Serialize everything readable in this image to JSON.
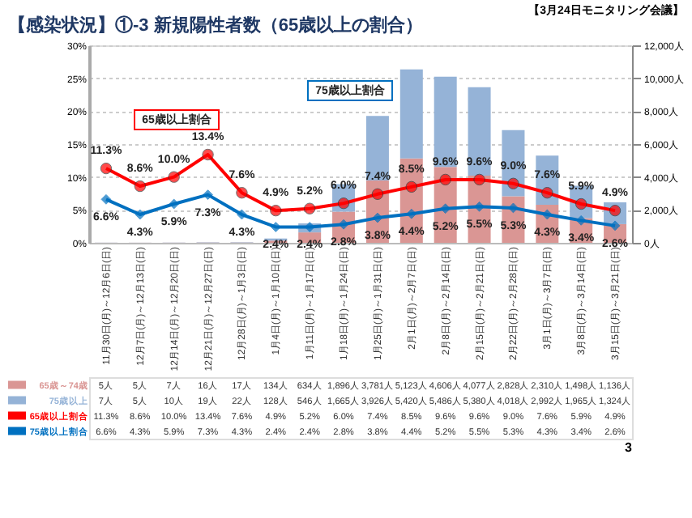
{
  "chart_data": {
    "type": "bar",
    "title": "【感染状況】①-3 新規陽性者数（65歳以上の割合）",
    "annotations": [
      "【3月24日モニタリング会議】",
      "3",
      "65歳以上割合",
      "75歳以上割合"
    ],
    "categories": [
      "11月30日(月)～12月6日(日)",
      "12月7日(月)～12月13日(日)",
      "12月14日(月)～12月20日(日)",
      "12月21日(月)～12月27日(日)",
      "12月28日(月)～1月3日(日)",
      "1月4日(月)～1月10日(日)",
      "1月11日(月)～1月17日(日)",
      "1月18日(月)～1月24日(日)",
      "1月25日(月)～1月31日(日)",
      "2月1日(月)～2月7日(日)",
      "2月8日(月)～2月14日(日)",
      "2月15日(月)～2月21日(日)",
      "2月22日(月)～2月28日(日)",
      "3月1日(月)～3月7日(日)",
      "3月8日(月)～3月14日(日)",
      "3月15日(月)～3月21日(日)"
    ],
    "stacked": true,
    "series": [
      {
        "name": "65歳～74歳",
        "axis": "y2",
        "color": "#da9694",
        "values": [
          5,
          5,
          7,
          16,
          17,
          134,
          634,
          1896,
          3781,
          5123,
          4606,
          4077,
          2828,
          2310,
          1498,
          1136
        ],
        "value_labels": [
          "5人",
          "5人",
          "7人",
          "16人",
          "17人",
          "134人",
          "634人",
          "1,896人",
          "3,781人",
          "5,123人",
          "4,606人",
          "4,077人",
          "2,828人",
          "2,310人",
          "1,498人",
          "1,136人"
        ]
      },
      {
        "name": "75歳以上",
        "axis": "y2",
        "color": "#95b3d7",
        "values": [
          7,
          5,
          10,
          19,
          22,
          128,
          546,
          1665,
          3926,
          5420,
          5486,
          5380,
          4018,
          2992,
          1965,
          1324
        ],
        "value_labels": [
          "7人",
          "5人",
          "10人",
          "19人",
          "22人",
          "128人",
          "546人",
          "1,665人",
          "3,926人",
          "5,420人",
          "5,486人",
          "5,380人",
          "4,018人",
          "2,992人",
          "1,965人",
          "1,324人"
        ]
      },
      {
        "name": "65歳以上割合",
        "type": "line",
        "axis": "y",
        "color": "#ff0000",
        "marker": "circle",
        "values": [
          11.3,
          8.6,
          10.0,
          13.4,
          7.6,
          4.9,
          5.2,
          6.0,
          7.4,
          8.5,
          9.6,
          9.6,
          9.0,
          7.6,
          5.9,
          4.9
        ],
        "value_labels": [
          "11.3%",
          "8.6%",
          "10.0%",
          "13.4%",
          "7.6%",
          "4.9%",
          "5.2%",
          "6.0%",
          "7.4%",
          "8.5%",
          "9.6%",
          "9.6%",
          "9.0%",
          "7.6%",
          "5.9%",
          "4.9%"
        ]
      },
      {
        "name": "75歳以上割合",
        "type": "line",
        "axis": "y",
        "color": "#0070c0",
        "marker": "diamond",
        "values": [
          6.6,
          4.3,
          5.9,
          7.3,
          4.3,
          2.4,
          2.4,
          2.8,
          3.8,
          4.4,
          5.2,
          5.5,
          5.3,
          4.3,
          3.4,
          2.6
        ],
        "value_labels": [
          "6.6%",
          "4.3%",
          "5.9%",
          "7.3%",
          "4.3%",
          "2.4%",
          "2.4%",
          "2.8%",
          "3.8%",
          "4.4%",
          "5.2%",
          "5.5%",
          "5.3%",
          "4.3%",
          "3.4%",
          "2.6%"
        ]
      }
    ],
    "ylim": [
      0,
      30
    ],
    "yticks": [
      {
        "value": 0,
        "label": "0%"
      },
      {
        "value": 5,
        "label": "5%"
      },
      {
        "value": 10,
        "label": "10%"
      },
      {
        "value": 15,
        "label": "15%"
      },
      {
        "value": 20,
        "label": "20%"
      },
      {
        "value": 25,
        "label": "25%"
      },
      {
        "value": 30,
        "label": "30%"
      }
    ],
    "y2lim": [
      0,
      12000
    ],
    "y2ticks": [
      {
        "value": 0,
        "label": "0人"
      },
      {
        "value": 2000,
        "label": "2,000人"
      },
      {
        "value": 4000,
        "label": "4,000人"
      },
      {
        "value": 6000,
        "label": "6,000人"
      },
      {
        "value": 8000,
        "label": "8,000人"
      },
      {
        "value": 10000,
        "label": "10,000人"
      },
      {
        "value": 12000,
        "label": "12,000人"
      }
    ],
    "grid": "y",
    "legend": "bottom left"
  }
}
